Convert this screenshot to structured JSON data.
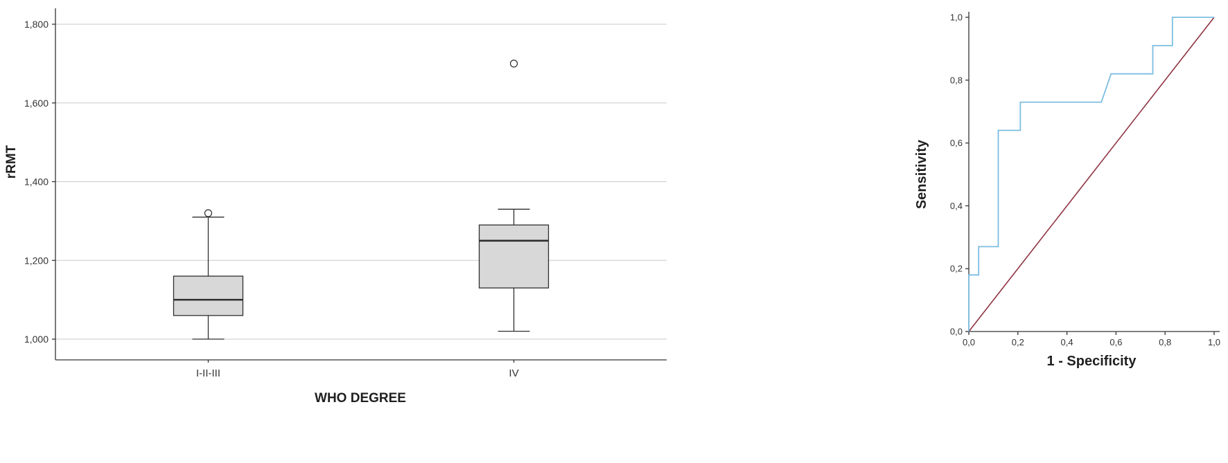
{
  "figure": {
    "background": "#ffffff",
    "description": "Box plot of rRMT by WHO degree (left panel) and ROC curve (right panel)"
  },
  "chart_data": [
    {
      "type": "boxplot",
      "title": "",
      "xlabel": "WHO DEGREE",
      "ylabel": "rRMT",
      "ylim": [
        1000,
        1800
      ],
      "grid": true,
      "yticks": [
        {
          "value": 1000,
          "label": "1,000"
        },
        {
          "value": 1200,
          "label": "1,200"
        },
        {
          "value": 1400,
          "label": "1,400"
        },
        {
          "value": 1600,
          "label": "1,600"
        },
        {
          "value": 1800,
          "label": "1,800"
        }
      ],
      "categories": [
        "I-II-III",
        "IV"
      ],
      "boxes": [
        {
          "category": "I-II-III",
          "whisker_low": 1000,
          "q1": 1060,
          "median": 1100,
          "q3": 1160,
          "whisker_high": 1310,
          "outliers": [
            1320
          ]
        },
        {
          "category": "IV",
          "whisker_low": 1020,
          "q1": 1130,
          "median": 1250,
          "q3": 1290,
          "whisker_high": 1330,
          "outliers": [
            1700
          ]
        }
      ],
      "colors": {
        "box_fill": "#d8d8d8",
        "box_stroke": "#2e2e2e",
        "grid": "#c9c9c9",
        "axis": "#333333",
        "outlier_fill": "#ffffff"
      }
    },
    {
      "type": "line",
      "subtype": "ROC",
      "title": "",
      "xlabel": "1 - Specificity",
      "ylabel": "Sensitivity",
      "xlim": [
        0,
        1
      ],
      "ylim": [
        0,
        1
      ],
      "grid": false,
      "legend": "none",
      "xticks": [
        {
          "value": 0.0,
          "label": "0,0"
        },
        {
          "value": 0.2,
          "label": "0,2"
        },
        {
          "value": 0.4,
          "label": "0,4"
        },
        {
          "value": 0.6,
          "label": "0,6"
        },
        {
          "value": 0.8,
          "label": "0,8"
        },
        {
          "value": 1.0,
          "label": "1,0"
        }
      ],
      "yticks": [
        {
          "value": 0.0,
          "label": "0,0"
        },
        {
          "value": 0.2,
          "label": "0,2"
        },
        {
          "value": 0.4,
          "label": "0,4"
        },
        {
          "value": 0.6,
          "label": "0,6"
        },
        {
          "value": 0.8,
          "label": "0,8"
        },
        {
          "value": 1.0,
          "label": "1,0"
        }
      ],
      "series": [
        {
          "name": "ROC curve",
          "color": "#7cbde2",
          "points": [
            [
              0,
              0
            ],
            [
              0,
              0.18
            ],
            [
              0.04,
              0.18
            ],
            [
              0.04,
              0.27
            ],
            [
              0.12,
              0.27
            ],
            [
              0.12,
              0.64
            ],
            [
              0.21,
              0.64
            ],
            [
              0.21,
              0.73
            ],
            [
              0.54,
              0.73
            ],
            [
              0.58,
              0.82
            ],
            [
              0.75,
              0.82
            ],
            [
              0.75,
              0.91
            ],
            [
              0.83,
              0.91
            ],
            [
              0.83,
              1.0
            ],
            [
              1.0,
              1.0
            ]
          ]
        },
        {
          "name": "Reference line",
          "color": "#8e3342",
          "points": [
            [
              0,
              0
            ],
            [
              1,
              1
            ]
          ]
        }
      ],
      "colors": {
        "axis": "#333333"
      }
    }
  ]
}
